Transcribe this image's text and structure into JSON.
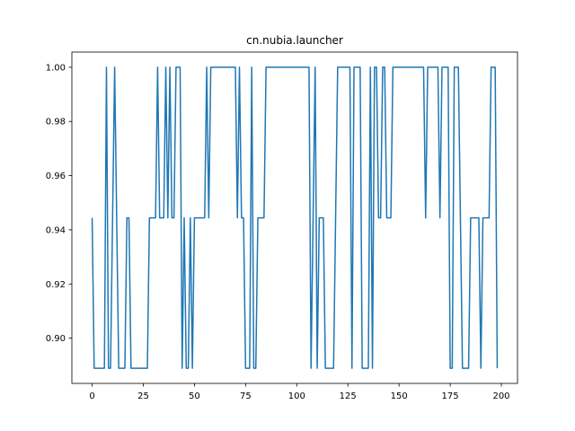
{
  "chart_data": {
    "type": "line",
    "title": "cn.nubia.launcher",
    "xlabel": "",
    "ylabel": "",
    "xlim": [
      -9.9,
      207.9
    ],
    "ylim": [
      0.8833,
      1.0056
    ],
    "xticks": [
      0,
      25,
      50,
      75,
      100,
      125,
      150,
      175,
      200
    ],
    "xtick_labels": [
      "0",
      "25",
      "50",
      "75",
      "100",
      "125",
      "150",
      "175",
      "200"
    ],
    "yticks": [
      0.9,
      0.92,
      0.94,
      0.96,
      0.98,
      1.0
    ],
    "ytick_labels": [
      "0.90",
      "0.92",
      "0.94",
      "0.96",
      "0.98",
      "1.00"
    ],
    "grid": false,
    "legend": "none",
    "line_color": "#1f77b4",
    "series": [
      {
        "values": [
          0.9444,
          0.8889,
          0.8889,
          0.8889,
          0.8889,
          0.8889,
          0.8889,
          1.0,
          0.8889,
          0.8889,
          0.9444,
          1.0,
          0.9444,
          0.8889,
          0.8889,
          0.8889,
          0.8889,
          0.9444,
          0.9444,
          0.8889,
          0.8889,
          0.8889,
          0.8889,
          0.8889,
          0.8889,
          0.8889,
          0.8889,
          0.8889,
          0.9444,
          0.9444,
          0.9444,
          0.9444,
          1.0,
          0.9444,
          0.9444,
          0.9444,
          1.0,
          0.9444,
          1.0,
          0.9444,
          0.9444,
          1.0,
          1.0,
          1.0,
          0.8889,
          0.9444,
          0.8889,
          0.8889,
          0.9444,
          0.8889,
          0.9444,
          0.9444,
          0.9444,
          0.9444,
          0.9444,
          0.9444,
          1.0,
          0.9444,
          1.0,
          1.0,
          1.0,
          1.0,
          1.0,
          1.0,
          1.0,
          1.0,
          1.0,
          1.0,
          1.0,
          1.0,
          1.0,
          0.9444,
          1.0,
          0.9444,
          0.9444,
          0.8889,
          0.8889,
          0.8889,
          1.0,
          0.8889,
          0.8889,
          0.9444,
          0.9444,
          0.9444,
          0.9444,
          1.0,
          1.0,
          1.0,
          1.0,
          1.0,
          1.0,
          1.0,
          1.0,
          1.0,
          1.0,
          1.0,
          1.0,
          1.0,
          1.0,
          1.0,
          1.0,
          1.0,
          1.0,
          1.0,
          1.0,
          1.0,
          1.0,
          0.8889,
          0.9444,
          1.0,
          0.8889,
          0.9444,
          0.9444,
          0.9444,
          0.8889,
          0.8889,
          0.8889,
          0.8889,
          0.8889,
          0.9444,
          1.0,
          1.0,
          1.0,
          1.0,
          1.0,
          1.0,
          1.0,
          0.8889,
          1.0,
          1.0,
          1.0,
          1.0,
          0.8889,
          0.8889,
          0.8889,
          0.8889,
          1.0,
          0.8889,
          1.0,
          1.0,
          0.9444,
          0.9444,
          1.0,
          1.0,
          0.9444,
          0.9444,
          0.9444,
          1.0,
          1.0,
          1.0,
          1.0,
          1.0,
          1.0,
          1.0,
          1.0,
          1.0,
          1.0,
          1.0,
          1.0,
          1.0,
          1.0,
          1.0,
          1.0,
          0.9444,
          1.0,
          1.0,
          1.0,
          1.0,
          1.0,
          1.0,
          0.9444,
          1.0,
          1.0,
          1.0,
          1.0,
          0.8889,
          0.8889,
          1.0,
          1.0,
          1.0,
          0.9444,
          0.8889,
          0.8889,
          0.8889,
          0.8889,
          0.9444,
          0.9444,
          0.9444,
          0.9444,
          0.9444,
          0.8889,
          0.9444,
          0.9444,
          0.9444,
          0.9444,
          1.0,
          1.0,
          1.0,
          0.8889
        ]
      }
    ]
  }
}
